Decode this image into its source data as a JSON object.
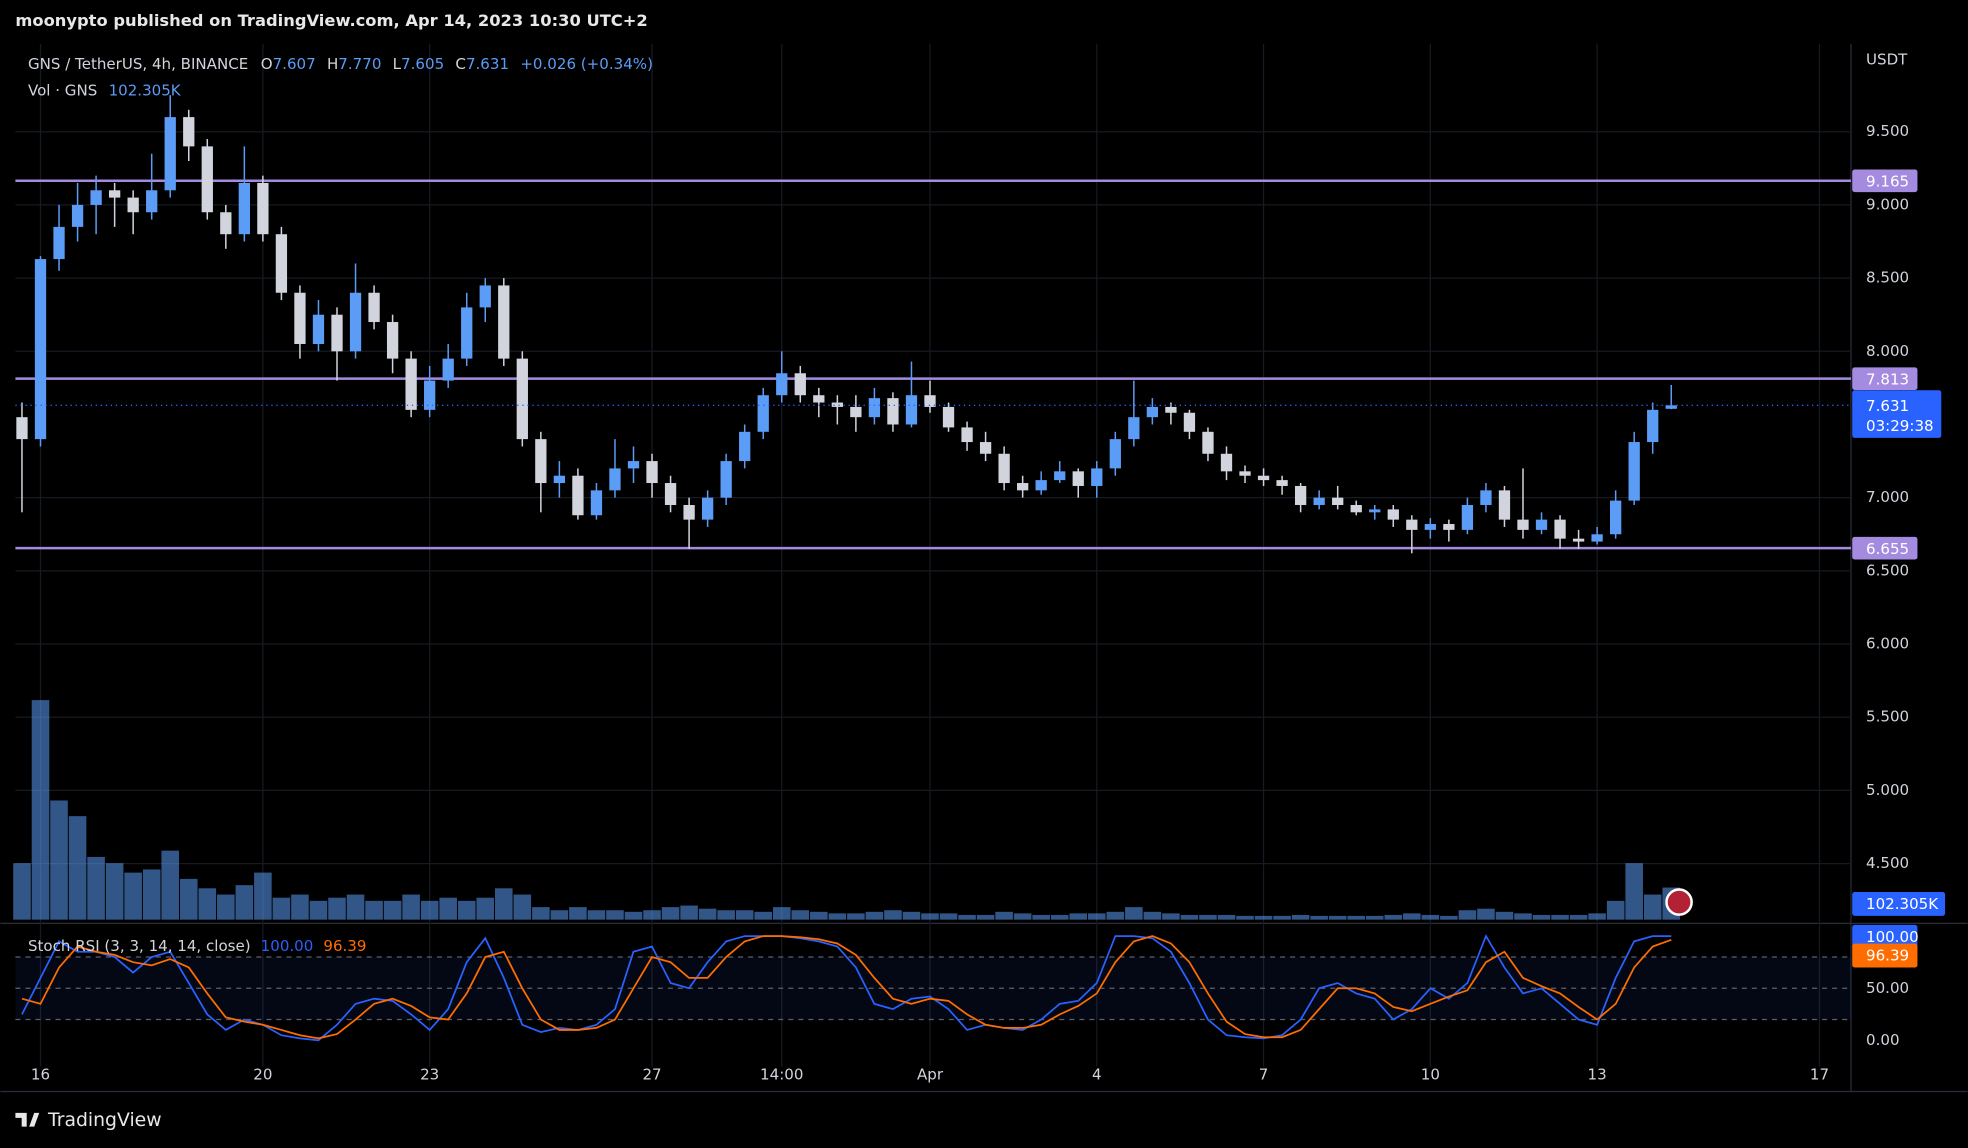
{
  "header": {
    "author_line": "moonypto published on TradingView.com, Apr 14, 2023 10:30 UTC+2"
  },
  "footer": {
    "brand": "TradingView"
  },
  "chart_data": [
    {
      "type": "candlestick",
      "symbol": "GNS / TetherUS, 4h, BINANCE",
      "last_bar": [
        {
          "key": "O",
          "value": "7.607"
        },
        {
          "key": "H",
          "value": "7.770"
        },
        {
          "key": "L",
          "value": "7.605"
        },
        {
          "key": "C",
          "value": "7.631"
        }
      ],
      "change": "+0.026 (+0.34%)",
      "axis_unit": "USDT",
      "up_color": "#5b9cf6",
      "down_color": "#d1d4dc",
      "ylim": [
        4.1,
        10.1
      ],
      "yticks": [
        {
          "value": 4.5,
          "label": "4.500"
        },
        {
          "value": 5,
          "label": "5.000"
        },
        {
          "value": 5.5,
          "label": "5.500"
        },
        {
          "value": 6,
          "label": "6.000"
        },
        {
          "value": 6.5,
          "label": "6.500"
        },
        {
          "value": 7,
          "label": "7.000"
        },
        {
          "value": 8,
          "label": "8.000"
        },
        {
          "value": 8.5,
          "label": "8.500"
        },
        {
          "value": 9,
          "label": "9.000"
        },
        {
          "value": 9.5,
          "label": "9.500"
        }
      ],
      "grid": true,
      "levels": [
        {
          "value": 9.165,
          "label": "9.165"
        },
        {
          "value": 7.813,
          "label": "7.813"
        },
        {
          "value": 6.655,
          "label": "6.655"
        }
      ],
      "level_color": "#a48be0",
      "last_price": {
        "value": 7.631,
        "label": "7.631",
        "countdown": "03:29:38",
        "color": "#2962ff"
      },
      "categories": [
        null,
        "16",
        null,
        null,
        null,
        null,
        null,
        null,
        null,
        null,
        null,
        null,
        null,
        "20",
        null,
        null,
        null,
        null,
        null,
        null,
        null,
        null,
        "23",
        null,
        null,
        null,
        null,
        null,
        null,
        null,
        null,
        null,
        null,
        null,
        "27",
        null,
        null,
        null,
        null,
        null,
        null,
        "14:00",
        null,
        null,
        null,
        null,
        null,
        null,
        null,
        "Apr",
        null,
        null,
        null,
        null,
        null,
        null,
        null,
        null,
        "4",
        null,
        null,
        null,
        null,
        null,
        null,
        null,
        null,
        "7",
        null,
        null,
        null,
        null,
        null,
        null,
        null,
        null,
        "10",
        null,
        null,
        null,
        null,
        null,
        null,
        null,
        null,
        "13",
        null,
        null,
        null,
        null,
        null,
        null,
        null,
        null,
        null,
        null,
        null,
        "17",
        null
      ],
      "ohlc": [
        [
          7.55,
          7.65,
          6.9,
          7.4
        ],
        [
          7.4,
          8.65,
          7.35,
          8.63
        ],
        [
          8.63,
          9.0,
          8.55,
          8.85
        ],
        [
          8.85,
          9.15,
          8.75,
          9.0
        ],
        [
          9.0,
          9.2,
          8.8,
          9.1
        ],
        [
          9.1,
          9.15,
          8.85,
          9.05
        ],
        [
          9.05,
          9.1,
          8.8,
          8.95
        ],
        [
          8.95,
          9.35,
          8.9,
          9.1
        ],
        [
          9.1,
          9.75,
          9.05,
          9.6
        ],
        [
          9.6,
          9.65,
          9.3,
          9.4
        ],
        [
          9.4,
          9.45,
          8.9,
          8.95
        ],
        [
          8.95,
          9.0,
          8.7,
          8.8
        ],
        [
          8.8,
          9.4,
          8.75,
          9.15
        ],
        [
          9.15,
          9.2,
          8.75,
          8.8
        ],
        [
          8.8,
          8.85,
          8.35,
          8.4
        ],
        [
          8.4,
          8.45,
          7.95,
          8.05
        ],
        [
          8.05,
          8.35,
          8.0,
          8.25
        ],
        [
          8.25,
          8.3,
          7.8,
          8.0
        ],
        [
          8.0,
          8.6,
          7.95,
          8.4
        ],
        [
          8.4,
          8.45,
          8.15,
          8.2
        ],
        [
          8.2,
          8.25,
          7.85,
          7.95
        ],
        [
          7.95,
          8.0,
          7.55,
          7.6
        ],
        [
          7.6,
          7.9,
          7.55,
          7.8
        ],
        [
          7.8,
          8.05,
          7.75,
          7.95
        ],
        [
          7.95,
          8.4,
          7.9,
          8.3
        ],
        [
          8.3,
          8.5,
          8.2,
          8.45
        ],
        [
          8.45,
          8.5,
          7.9,
          7.95
        ],
        [
          7.95,
          8.0,
          7.35,
          7.4
        ],
        [
          7.4,
          7.45,
          6.9,
          7.1
        ],
        [
          7.1,
          7.25,
          7.0,
          7.15
        ],
        [
          7.15,
          7.2,
          6.85,
          6.88
        ],
        [
          6.88,
          7.1,
          6.85,
          7.05
        ],
        [
          7.05,
          7.4,
          7.0,
          7.2
        ],
        [
          7.2,
          7.35,
          7.1,
          7.25
        ],
        [
          7.25,
          7.3,
          7.0,
          7.1
        ],
        [
          7.1,
          7.15,
          6.9,
          6.95
        ],
        [
          6.95,
          7.0,
          6.65,
          6.85
        ],
        [
          6.85,
          7.05,
          6.8,
          7.0
        ],
        [
          7.0,
          7.3,
          6.95,
          7.25
        ],
        [
          7.25,
          7.5,
          7.2,
          7.45
        ],
        [
          7.45,
          7.75,
          7.4,
          7.7
        ],
        [
          7.7,
          8.0,
          7.65,
          7.85
        ],
        [
          7.85,
          7.9,
          7.65,
          7.7
        ],
        [
          7.7,
          7.75,
          7.55,
          7.65
        ],
        [
          7.65,
          7.7,
          7.5,
          7.62
        ],
        [
          7.62,
          7.7,
          7.45,
          7.55
        ],
        [
          7.55,
          7.75,
          7.5,
          7.68
        ],
        [
          7.68,
          7.72,
          7.45,
          7.5
        ],
        [
          7.5,
          7.93,
          7.48,
          7.7
        ],
        [
          7.7,
          7.8,
          7.58,
          7.62
        ],
        [
          7.62,
          7.65,
          7.45,
          7.48
        ],
        [
          7.48,
          7.52,
          7.32,
          7.38
        ],
        [
          7.38,
          7.45,
          7.25,
          7.3
        ],
        [
          7.3,
          7.35,
          7.05,
          7.1
        ],
        [
          7.1,
          7.15,
          7.0,
          7.05
        ],
        [
          7.05,
          7.18,
          7.02,
          7.12
        ],
        [
          7.12,
          7.25,
          7.1,
          7.18
        ],
        [
          7.18,
          7.2,
          7.0,
          7.08
        ],
        [
          7.08,
          7.25,
          7.0,
          7.2
        ],
        [
          7.2,
          7.45,
          7.15,
          7.4
        ],
        [
          7.4,
          7.8,
          7.35,
          7.55
        ],
        [
          7.55,
          7.68,
          7.5,
          7.62
        ],
        [
          7.62,
          7.65,
          7.5,
          7.58
        ],
        [
          7.58,
          7.6,
          7.4,
          7.45
        ],
        [
          7.45,
          7.48,
          7.25,
          7.3
        ],
        [
          7.3,
          7.35,
          7.12,
          7.18
        ],
        [
          7.18,
          7.22,
          7.1,
          7.15
        ],
        [
          7.15,
          7.2,
          7.08,
          7.12
        ],
        [
          7.12,
          7.15,
          7.02,
          7.08
        ],
        [
          7.08,
          7.1,
          6.9,
          6.95
        ],
        [
          6.95,
          7.05,
          6.92,
          7.0
        ],
        [
          7.0,
          7.08,
          6.92,
          6.95
        ],
        [
          6.95,
          6.98,
          6.88,
          6.9
        ],
        [
          6.9,
          6.95,
          6.85,
          6.92
        ],
        [
          6.92,
          6.95,
          6.8,
          6.85
        ],
        [
          6.85,
          6.88,
          6.62,
          6.78
        ],
        [
          6.78,
          6.86,
          6.72,
          6.82
        ],
        [
          6.82,
          6.85,
          6.7,
          6.78
        ],
        [
          6.78,
          7.0,
          6.75,
          6.95
        ],
        [
          6.95,
          7.1,
          6.9,
          7.05
        ],
        [
          7.05,
          7.08,
          6.8,
          6.85
        ],
        [
          6.85,
          7.2,
          6.72,
          6.78
        ],
        [
          6.78,
          6.9,
          6.75,
          6.85
        ],
        [
          6.85,
          6.88,
          6.65,
          6.72
        ],
        [
          6.72,
          6.78,
          6.65,
          6.7
        ],
        [
          6.7,
          6.8,
          6.68,
          6.75
        ],
        [
          6.75,
          7.05,
          6.72,
          6.98
        ],
        [
          6.98,
          7.45,
          6.95,
          7.38
        ],
        [
          7.38,
          7.65,
          7.3,
          7.6
        ],
        [
          7.607,
          7.77,
          7.605,
          7.631
        ],
        null,
        null,
        null,
        null,
        null,
        null,
        null,
        null,
        null
      ],
      "volume_legend": "Vol · GNS",
      "volume_color": "#5b9cf6",
      "volume": [
        180000,
        700000,
        380000,
        330000,
        200000,
        180000,
        150000,
        160000,
        220000,
        130000,
        100000,
        80000,
        110000,
        150000,
        70000,
        80000,
        60000,
        70000,
        80000,
        60000,
        60000,
        80000,
        60000,
        70000,
        60000,
        70000,
        100000,
        80000,
        40000,
        30000,
        40000,
        30000,
        30000,
        25000,
        30000,
        40000,
        45000,
        35000,
        30000,
        30000,
        25000,
        40000,
        30000,
        25000,
        20000,
        20000,
        25000,
        30000,
        25000,
        20000,
        20000,
        15000,
        15000,
        25000,
        20000,
        15000,
        15000,
        20000,
        20000,
        25000,
        40000,
        25000,
        20000,
        15000,
        15000,
        15000,
        12000,
        12000,
        12000,
        15000,
        12000,
        12000,
        12000,
        12000,
        15000,
        20000,
        15000,
        12000,
        30000,
        35000,
        25000,
        20000,
        15000,
        15000,
        15000,
        20000,
        60000,
        180000,
        80000,
        102305,
        null,
        null,
        null,
        null,
        null,
        null,
        null,
        null,
        null
      ],
      "volume_last_label": "102.305K"
    },
    {
      "type": "line",
      "title": "Stoch RSI (3, 3, 14, 14, close)",
      "ylim": [
        -25,
        111
      ],
      "yticks": [
        {
          "value": 0,
          "label": "0.00"
        },
        {
          "value": 50,
          "label": "50.00"
        }
      ],
      "bands": [
        20,
        50,
        80
      ],
      "series": [
        {
          "color": "#2962ff",
          "current_label": "100.00",
          "values": [
            25,
            60,
            95,
            85,
            85,
            80,
            65,
            80,
            85,
            55,
            25,
            10,
            20,
            15,
            5,
            2,
            0,
            15,
            35,
            40,
            38,
            25,
            10,
            30,
            75,
            98,
            60,
            15,
            8,
            12,
            10,
            15,
            30,
            85,
            90,
            55,
            50,
            75,
            95,
            100,
            100,
            100,
            98,
            95,
            90,
            70,
            35,
            30,
            40,
            42,
            30,
            10,
            15,
            12,
            10,
            20,
            35,
            38,
            55,
            100,
            100,
            98,
            85,
            55,
            20,
            5,
            3,
            2,
            5,
            20,
            50,
            55,
            45,
            40,
            20,
            30,
            50,
            40,
            55,
            100,
            70,
            45,
            50,
            35,
            20,
            15,
            60,
            95,
            100,
            100
          ]
        },
        {
          "color": "#ff6d00",
          "current_label": "96.39",
          "values": [
            40,
            35,
            70,
            90,
            85,
            82,
            75,
            72,
            78,
            70,
            45,
            22,
            18,
            15,
            10,
            5,
            2,
            6,
            20,
            35,
            40,
            33,
            22,
            20,
            45,
            80,
            85,
            50,
            20,
            10,
            10,
            12,
            20,
            50,
            80,
            75,
            60,
            60,
            80,
            95,
            100,
            100,
            99,
            97,
            93,
            82,
            60,
            40,
            35,
            40,
            38,
            25,
            15,
            12,
            12,
            15,
            25,
            33,
            45,
            75,
            95,
            100,
            93,
            75,
            45,
            18,
            6,
            3,
            3,
            10,
            30,
            50,
            50,
            45,
            32,
            28,
            35,
            42,
            48,
            75,
            85,
            60,
            52,
            45,
            32,
            20,
            35,
            70,
            90,
            96.39
          ]
        }
      ]
    }
  ]
}
